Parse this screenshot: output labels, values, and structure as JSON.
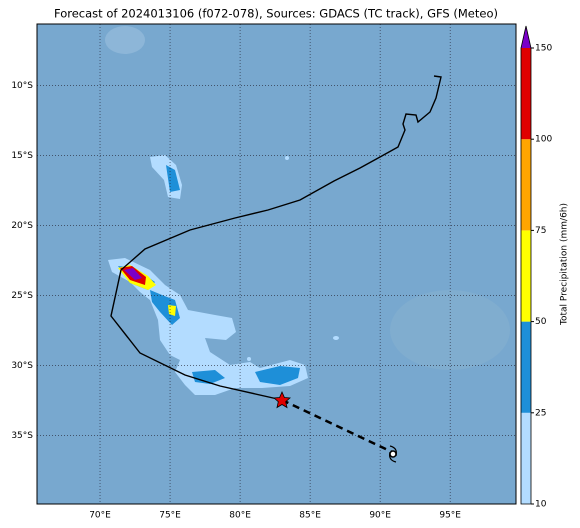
{
  "map": {
    "title": "Forecast of 2024013106 (f072-078), Sources: GDACS (TC track), GFS (Meteo)",
    "lon_range": [
      65.5,
      99.7
    ],
    "lat_range": [
      -5.6,
      -39.9
    ],
    "lon_ticks": [
      {
        "value": 70,
        "label": "70°E"
      },
      {
        "value": 75,
        "label": "75°E"
      },
      {
        "value": 80,
        "label": "80°E"
      },
      {
        "value": 85,
        "label": "85°E"
      },
      {
        "value": 90,
        "label": "90°E"
      },
      {
        "value": 95,
        "label": "95°E"
      }
    ],
    "lat_ticks": [
      {
        "value": -10,
        "label": "10°S"
      },
      {
        "value": -15,
        "label": "15°S"
      },
      {
        "value": -20,
        "label": "20°S"
      },
      {
        "value": -25,
        "label": "25°S"
      },
      {
        "value": -30,
        "label": "30°S"
      },
      {
        "value": -35,
        "label": "35°S"
      }
    ]
  },
  "colorbar": {
    "label": "Total Precipitation (mm/6h)",
    "ticks": [
      10,
      25,
      50,
      75,
      100,
      150
    ],
    "colors": [
      "#b3dcff",
      "#1e8fd8",
      "#ffff00",
      "#ffa500",
      "#e00000"
    ],
    "extend_color": "#7a00c8"
  }
}
